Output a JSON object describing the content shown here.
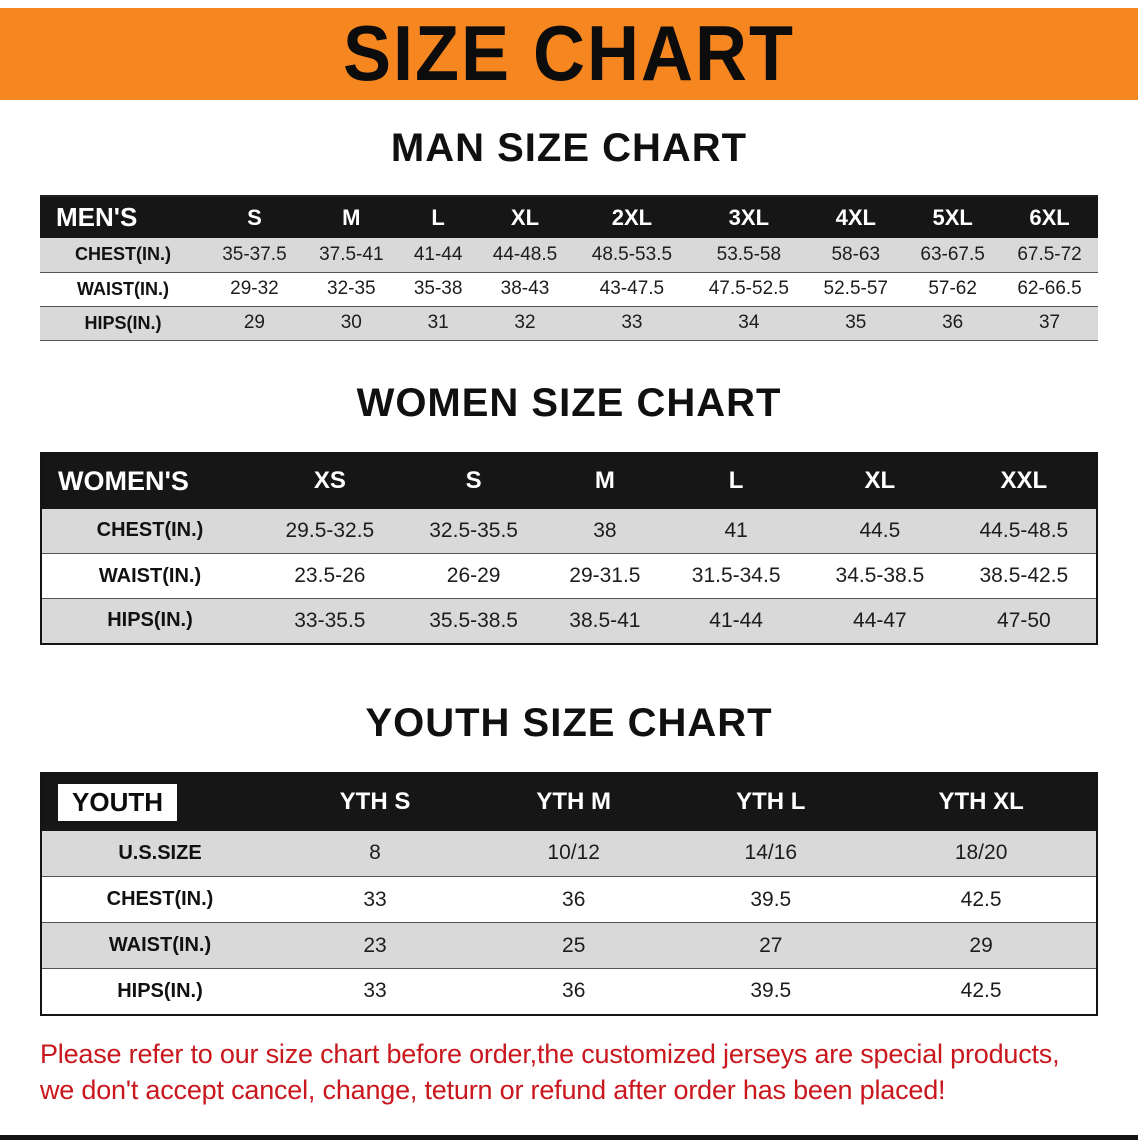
{
  "banner": {
    "title": "SIZE CHART",
    "background_color": "#f6861f",
    "text_color": "#0c0c0c"
  },
  "sections": [
    {
      "id": "men",
      "heading": "MAN SIZE CHART",
      "table": {
        "header": [
          "MEN'S",
          "S",
          "M",
          "L",
          "XL",
          "2XL",
          "3XL",
          "4XL",
          "5XL",
          "6XL"
        ],
        "rows": [
          [
            "CHEST(IN.)",
            "35-37.5",
            "37.5-41",
            "41-44",
            "44-48.5",
            "48.5-53.5",
            "53.5-58",
            "58-63",
            "63-67.5",
            "67.5-72"
          ],
          [
            "WAIST(IN.)",
            "29-32",
            "32-35",
            "35-38",
            "38-43",
            "43-47.5",
            "47.5-52.5",
            "52.5-57",
            "57-62",
            "62-66.5"
          ],
          [
            "HIPS(IN.)",
            "29",
            "30",
            "31",
            "32",
            "33",
            "34",
            "35",
            "36",
            "37"
          ]
        ]
      }
    },
    {
      "id": "women",
      "heading": "WOMEN SIZE CHART",
      "table": {
        "header": [
          "WOMEN'S",
          "XS",
          "S",
          "M",
          "L",
          "XL",
          "XXL"
        ],
        "rows": [
          [
            "CHEST(IN.)",
            "29.5-32.5",
            "32.5-35.5",
            "38",
            "41",
            "44.5",
            "44.5-48.5"
          ],
          [
            "WAIST(IN.)",
            "23.5-26",
            "26-29",
            "29-31.5",
            "31.5-34.5",
            "34.5-38.5",
            "38.5-42.5"
          ],
          [
            "HIPS(IN.)",
            "33-35.5",
            "35.5-38.5",
            "38.5-41",
            "41-44",
            "44-47",
            "47-50"
          ]
        ]
      }
    },
    {
      "id": "youth",
      "heading": "YOUTH SIZE CHART",
      "table": {
        "header": [
          "YOUTH",
          "YTH S",
          "YTH M",
          "YTH L",
          "YTH XL"
        ],
        "rows": [
          [
            "U.S.SIZE",
            "8",
            "10/12",
            "14/16",
            "18/20"
          ],
          [
            "CHEST(IN.)",
            "33",
            "36",
            "39.5",
            "42.5"
          ],
          [
            "WAIST(IN.)",
            "23",
            "25",
            "27",
            "29"
          ],
          [
            "HIPS(IN.)",
            "33",
            "36",
            "39.5",
            "42.5"
          ]
        ]
      }
    }
  ],
  "table_style": {
    "header_background": "#161616",
    "header_text_color": "#ffffff",
    "striped_row_color": "#d9d9d9"
  },
  "disclaimer": {
    "line1": "Please refer to our size chart before order,the customized jerseys are special products,",
    "line2": "we don't accept cancel, change, teturn or refund after order has been placed!",
    "color": "#c9171e"
  }
}
